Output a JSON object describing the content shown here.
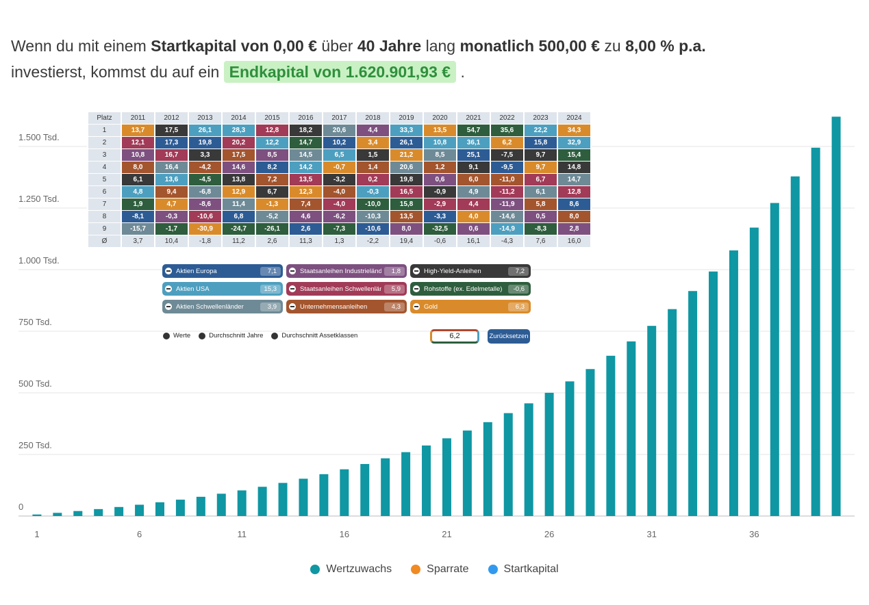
{
  "sentence": [
    "Wenn du mit einem",
    "Startkapital von 0,00 €",
    "über",
    "40 Jahre",
    "lang",
    "monatlich 500,00 €",
    "zu",
    "8,00 % p.a.",
    "investierst, kommst du auf ein",
    "Endkapital von 1.620.901,93 €",
    "."
  ],
  "chart_data": {
    "type": "bar",
    "stacked": true,
    "x": [
      1,
      2,
      3,
      4,
      5,
      6,
      7,
      8,
      9,
      10,
      11,
      12,
      13,
      14,
      15,
      16,
      17,
      18,
      19,
      20,
      21,
      22,
      23,
      24,
      25,
      26,
      27,
      28,
      29,
      30,
      31,
      32,
      33,
      34,
      35,
      36,
      37,
      38,
      39,
      40
    ],
    "xlim": [
      0.1,
      40.9
    ],
    "xticks": [
      1,
      6,
      11,
      16,
      21,
      26,
      31,
      36
    ],
    "ylim": [
      0,
      1700
    ],
    "yticks": [
      0,
      {
        "value": 250,
        "label": "250 Tsd."
      },
      {
        "value": 500,
        "label": "500 Tsd."
      },
      {
        "value": 750,
        "label": "750 Tsd."
      },
      {
        "value": 1000,
        "label": "1.000 Tsd."
      },
      {
        "value": 1250,
        "label": "1.250 Tsd."
      },
      {
        "value": 1500,
        "label": "1.500 Tsd."
      }
    ],
    "grid": true,
    "series": [
      {
        "name": "Startkapital",
        "color": "#3399ee",
        "values": [
          0,
          0,
          0,
          0,
          0,
          0,
          0,
          0,
          0,
          0,
          0,
          0,
          0,
          0,
          0,
          0,
          0,
          0,
          0,
          0,
          0,
          0,
          0,
          0,
          0,
          0,
          0,
          0,
          0,
          0,
          0,
          0,
          0,
          0,
          0,
          0,
          0,
          0,
          0,
          0
        ]
      },
      {
        "name": "Sparrate",
        "color": "#f08a24",
        "values": [
          0,
          0,
          0,
          0,
          0,
          0,
          0,
          0,
          0,
          0,
          0,
          0,
          0,
          0,
          0,
          0,
          0,
          0,
          0,
          0,
          0,
          0,
          0,
          0,
          0,
          0,
          0,
          0,
          0,
          0,
          0,
          0,
          0,
          0,
          0,
          0,
          0,
          0,
          0,
          0
        ]
      },
      {
        "name": "Wertzuwachs",
        "color": "#0f97a3",
        "values": [
          6.3,
          13,
          20.3,
          28.2,
          36.7,
          45.9,
          55.8,
          66.5,
          78.1,
          90.6,
          104.1,
          118.7,
          134.5,
          151.5,
          169.9,
          189.7,
          211.2,
          234.3,
          259.3,
          286.3,
          315.5,
          347,
          381,
          417.7,
          457.4,
          500.3,
          546.5,
          596.5,
          650.5,
          708.8,
          771.8,
          839.8,
          913.2,
          992.5,
          1078.2,
          1170.7,
          1270.6,
          1378.5,
          1495,
          1620.9
        ]
      }
    ],
    "legend_order": [
      "Wertzuwachs",
      "Sparrate",
      "Startkapital"
    ]
  },
  "table": {
    "header": [
      "Platz",
      "2011",
      "2012",
      "2013",
      "2014",
      "2015",
      "2016",
      "2017",
      "2018",
      "2019",
      "2020",
      "2021",
      "2022",
      "2023",
      "2024"
    ],
    "rows": [
      {
        "rank": "1",
        "cells": [
          [
            "13,7",
            "#d98b2b"
          ],
          [
            "17,5",
            "#393939"
          ],
          [
            "26,1",
            "#4d9fbf"
          ],
          [
            "28,3",
            "#4d9fbf"
          ],
          [
            "12,8",
            "#a13b57"
          ],
          [
            "18,2",
            "#393939"
          ],
          [
            "20,6",
            "#6e8a96"
          ],
          [
            "4,4",
            "#7d5080"
          ],
          [
            "33,3",
            "#4d9fbf"
          ],
          [
            "13,5",
            "#d98b2b"
          ],
          [
            "54,7",
            "#2e5e3d"
          ],
          [
            "35,6",
            "#2e5e3d"
          ],
          [
            "22,2",
            "#4d9fbf"
          ],
          [
            "34,3",
            "#d98b2b"
          ]
        ]
      },
      {
        "rank": "2",
        "cells": [
          [
            "12,1",
            "#a13b57"
          ],
          [
            "17,3",
            "#2d5c95"
          ],
          [
            "19,8",
            "#2d5c95"
          ],
          [
            "20,2",
            "#a13b57"
          ],
          [
            "12,2",
            "#4d9fbf"
          ],
          [
            "14,7",
            "#2e5e3d"
          ],
          [
            "10,2",
            "#2d5c95"
          ],
          [
            "3,4",
            "#d98b2b"
          ],
          [
            "26,1",
            "#2d5c95"
          ],
          [
            "10,8",
            "#4d9fbf"
          ],
          [
            "36,1",
            "#4d9fbf"
          ],
          [
            "6,2",
            "#d98b2b"
          ],
          [
            "15,8",
            "#2d5c95"
          ],
          [
            "32,9",
            "#4d9fbf"
          ]
        ]
      },
      {
        "rank": "3",
        "cells": [
          [
            "10,8",
            "#7d5080"
          ],
          [
            "16,7",
            "#a13b57"
          ],
          [
            "3,3",
            "#393939"
          ],
          [
            "17,5",
            "#a3552e"
          ],
          [
            "8,5",
            "#7d5080"
          ],
          [
            "14,5",
            "#6e8a96"
          ],
          [
            "6,5",
            "#4d9fbf"
          ],
          [
            "1,5",
            "#393939"
          ],
          [
            "21,2",
            "#d98b2b"
          ],
          [
            "8,5",
            "#6e8a96"
          ],
          [
            "25,1",
            "#2d5c95"
          ],
          [
            "-7,5",
            "#393939"
          ],
          [
            "9,7",
            "#393939"
          ],
          [
            "15,4",
            "#2e5e3d"
          ]
        ]
      },
      {
        "rank": "4",
        "cells": [
          [
            "8,0",
            "#a3552e"
          ],
          [
            "16,4",
            "#6e8a96"
          ],
          [
            "-4,2",
            "#a3552e"
          ],
          [
            "14,6",
            "#7d5080"
          ],
          [
            "8,2",
            "#2d5c95"
          ],
          [
            "14,2",
            "#4d9fbf"
          ],
          [
            "-0,7",
            "#d98b2b"
          ],
          [
            "1,4",
            "#a3552e"
          ],
          [
            "20,6",
            "#6e8a96"
          ],
          [
            "1,2",
            "#a3552e"
          ],
          [
            "9,1",
            "#393939"
          ],
          [
            "-9,5",
            "#2d5c95"
          ],
          [
            "9,7",
            "#d98b2b"
          ],
          [
            "14,8",
            "#393939"
          ]
        ]
      },
      {
        "rank": "5",
        "cells": [
          [
            "6,1",
            "#393939"
          ],
          [
            "13,6",
            "#4d9fbf"
          ],
          [
            "-4,5",
            "#2e5e3d"
          ],
          [
            "13,8",
            "#393939"
          ],
          [
            "7,2",
            "#a3552e"
          ],
          [
            "13,5",
            "#a13b57"
          ],
          [
            "-3,2",
            "#393939"
          ],
          [
            "0,2",
            "#a13b57"
          ],
          [
            "19,8",
            "#393939"
          ],
          [
            "0,6",
            "#7d5080"
          ],
          [
            "6,0",
            "#a3552e"
          ],
          [
            "-11,0",
            "#a3552e"
          ],
          [
            "6,7",
            "#a13b57"
          ],
          [
            "14,7",
            "#6e8a96"
          ]
        ]
      },
      {
        "rank": "6",
        "cells": [
          [
            "4,8",
            "#4d9fbf"
          ],
          [
            "9,4",
            "#a3552e"
          ],
          [
            "-6,8",
            "#6e8a96"
          ],
          [
            "12,9",
            "#d98b2b"
          ],
          [
            "6,7",
            "#393939"
          ],
          [
            "12,3",
            "#d98b2b"
          ],
          [
            "-4,0",
            "#a3552e"
          ],
          [
            "-0,3",
            "#4d9fbf"
          ],
          [
            "16,5",
            "#a13b57"
          ],
          [
            "-0,9",
            "#393939"
          ],
          [
            "4,9",
            "#6e8a96"
          ],
          [
            "-11,2",
            "#a13b57"
          ],
          [
            "6,1",
            "#6e8a96"
          ],
          [
            "12,8",
            "#a13b57"
          ]
        ]
      },
      {
        "rank": "7",
        "cells": [
          [
            "1,9",
            "#2e5e3d"
          ],
          [
            "4,7",
            "#d98b2b"
          ],
          [
            "-8,6",
            "#7d5080"
          ],
          [
            "11,4",
            "#6e8a96"
          ],
          [
            "-1,3",
            "#d98b2b"
          ],
          [
            "7,4",
            "#a3552e"
          ],
          [
            "-4,0",
            "#a13b57"
          ],
          [
            "-10,0",
            "#2e5e3d"
          ],
          [
            "15,8",
            "#2e5e3d"
          ],
          [
            "-2,9",
            "#a13b57"
          ],
          [
            "4,4",
            "#a13b57"
          ],
          [
            "-11,9",
            "#7d5080"
          ],
          [
            "5,8",
            "#a3552e"
          ],
          [
            "8,6",
            "#2d5c95"
          ]
        ]
      },
      {
        "rank": "8",
        "cells": [
          [
            "-8,1",
            "#2d5c95"
          ],
          [
            "-0,3",
            "#7d5080"
          ],
          [
            "-10,6",
            "#a13b57"
          ],
          [
            "6,8",
            "#2d5c95"
          ],
          [
            "-5,2",
            "#6e8a96"
          ],
          [
            "4,6",
            "#7d5080"
          ],
          [
            "-6,2",
            "#7d5080"
          ],
          [
            "-10,3",
            "#6e8a96"
          ],
          [
            "13,5",
            "#a3552e"
          ],
          [
            "-3,3",
            "#2d5c95"
          ],
          [
            "4,0",
            "#d98b2b"
          ],
          [
            "-14,6",
            "#6e8a96"
          ],
          [
            "0,5",
            "#7d5080"
          ],
          [
            "8,0",
            "#a3552e"
          ]
        ]
      },
      {
        "rank": "9",
        "cells": [
          [
            "-15,7",
            "#6e8a96"
          ],
          [
            "-1,7",
            "#2e5e3d"
          ],
          [
            "-30,9",
            "#d98b2b"
          ],
          [
            "-24,7",
            "#2e5e3d"
          ],
          [
            "-26,1",
            "#2e5e3d"
          ],
          [
            "2,6",
            "#2d5c95"
          ],
          [
            "-7,3",
            "#2e5e3d"
          ],
          [
            "-10,6",
            "#2d5c95"
          ],
          [
            "8,0",
            "#7d5080"
          ],
          [
            "-32,5",
            "#2e5e3d"
          ],
          [
            "0,6",
            "#7d5080"
          ],
          [
            "-14,9",
            "#4d9fbf"
          ],
          [
            "-8,3",
            "#2e5e3d"
          ],
          [
            "2,8",
            "#7d5080"
          ]
        ]
      }
    ],
    "average": {
      "label": "Ø",
      "cells": [
        "3,7",
        "10,4",
        "-1,8",
        "11,2",
        "2,6",
        "11,3",
        "1,3",
        "-2,2",
        "19,4",
        "-0,6",
        "16,1",
        "-4,3",
        "7,6",
        "16,0"
      ]
    }
  },
  "asset_classes": [
    {
      "name": "Aktien Europa",
      "value": "7,1",
      "color": "#2d5c95"
    },
    {
      "name": "Staatsanleihen Industrieländer",
      "value": "1,8",
      "color": "#7d5080"
    },
    {
      "name": "High-Yield-Anleihen",
      "value": "7,2",
      "color": "#393939"
    },
    {
      "name": "Aktien USA",
      "value": "15,3",
      "color": "#4d9fbf"
    },
    {
      "name": "Staatsanleihen Schwellenländer",
      "value": "5,9",
      "color": "#a13b57"
    },
    {
      "name": "Rohstoffe (ex. Edelmetalle)",
      "value": "-0,6",
      "color": "#2e5e3d"
    },
    {
      "name": "Aktien Schwellenländer",
      "value": "3,9",
      "color": "#6e8a96"
    },
    {
      "name": "Unternehmensanleihen",
      "value": "4,3",
      "color": "#a3552e"
    },
    {
      "name": "Gold",
      "value": "6,3",
      "color": "#d98b2b"
    }
  ],
  "display_options": [
    "Werte",
    "Durchschnitt Jahre",
    "Durchschnitt Assetklassen"
  ],
  "average_input": "6,2",
  "reset_button": "Zurücksetzen"
}
